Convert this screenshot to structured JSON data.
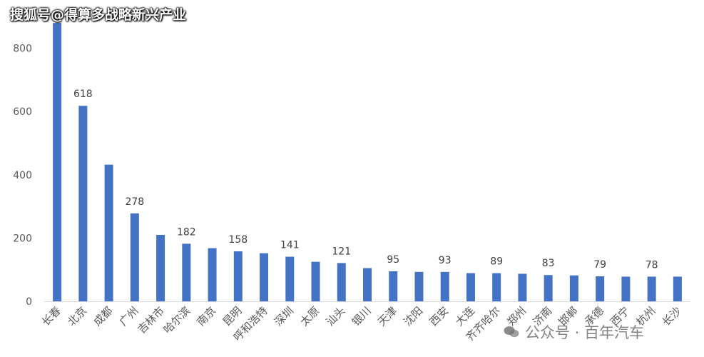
{
  "watermark_top": "搜狐号@得算多战略新兴产业",
  "watermark_bottom": "公众号 · 百年汽车",
  "colors": {
    "bar": "#4472C4",
    "axis": "#d9d9d9",
    "text": "#595959"
  },
  "chart_data": {
    "type": "bar",
    "categories": [
      "长春",
      "北京",
      "成都",
      "广州",
      "吉林市",
      "哈尔滨",
      "南京",
      "昆明",
      "呼和浩特",
      "深圳",
      "太原",
      "汕头",
      "银川",
      "天津",
      "沈阳",
      "西安",
      "大连",
      "齐齐哈尔",
      "郑州",
      "济南",
      "邯郸",
      "承德",
      "西宁",
      "杭州",
      "长沙"
    ],
    "values": [
      880,
      618,
      432,
      278,
      210,
      182,
      168,
      158,
      152,
      141,
      125,
      121,
      105,
      95,
      93,
      93,
      89,
      89,
      87,
      83,
      82,
      79,
      78,
      78,
      78
    ],
    "data_labels": {
      "北京": "618",
      "广州": "278",
      "哈尔滨": "182",
      "昆明": "158",
      "深圳": "141",
      "汕头": "121",
      "天津": "95",
      "西安": "93",
      "齐齐哈尔": "89",
      "济南": "83",
      "承德": "79",
      "杭州": "78"
    },
    "yticks": [
      0,
      200,
      400,
      600,
      800
    ],
    "ylim": [
      0,
      900
    ],
    "title": "",
    "xlabel": "",
    "ylabel": "",
    "grid": false
  }
}
